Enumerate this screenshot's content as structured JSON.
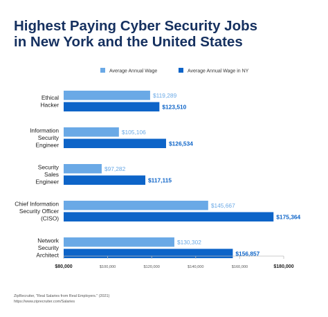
{
  "title_lines": [
    "Highest Paying Cyber Security Jobs",
    "in New York and the United States"
  ],
  "source_lines": [
    "ZipRecruiter, \"Real Salaries from Real Employers.\" (2021)",
    "https://www.ziprecruiter.com/Salaries"
  ],
  "colors": {
    "series_1": "#6aa9e6",
    "series_2": "#0d64c8",
    "title": "#15305f",
    "axis": "#bbbbbb"
  },
  "chart_data": {
    "type": "bar",
    "orientation": "horizontal",
    "title": "Highest Paying Cyber Security Jobs in New York and the United States",
    "legend_position": "top-right",
    "grid": false,
    "xlim": [
      80000,
      180000
    ],
    "categories": [
      [
        "Ethical",
        "Hacker"
      ],
      [
        "Information",
        "Security",
        "Engineer"
      ],
      [
        "Security",
        "Sales",
        "Engineer"
      ],
      [
        "Chief Information",
        "Security Officer",
        "(CISO)"
      ],
      [
        "Network",
        "Security",
        "Architect"
      ]
    ],
    "series": [
      {
        "name": "Average Annual Wage",
        "values": [
          119289,
          105106,
          97282,
          145667,
          130302
        ],
        "labels": [
          "$119,289",
          "$105,106",
          "$97,282",
          "$145,667",
          "$130,302"
        ]
      },
      {
        "name": "Average Annual Wage in NY",
        "values": [
          123510,
          126534,
          117115,
          175364,
          156857
        ],
        "labels": [
          "$123,510",
          "$126,534",
          "$117,115",
          "$175,364",
          "$156,857"
        ]
      }
    ],
    "ticks": [
      {
        "value": 80000,
        "label": "$80,000",
        "emphasis": true
      },
      {
        "value": 100000,
        "label": "$100,000",
        "emphasis": false
      },
      {
        "value": 120000,
        "label": "$120,000",
        "emphasis": false
      },
      {
        "value": 140000,
        "label": "$140,000",
        "emphasis": false
      },
      {
        "value": 160000,
        "label": "$160,000",
        "emphasis": false
      },
      {
        "value": 180000,
        "label": "$180,000",
        "emphasis": true
      }
    ]
  }
}
